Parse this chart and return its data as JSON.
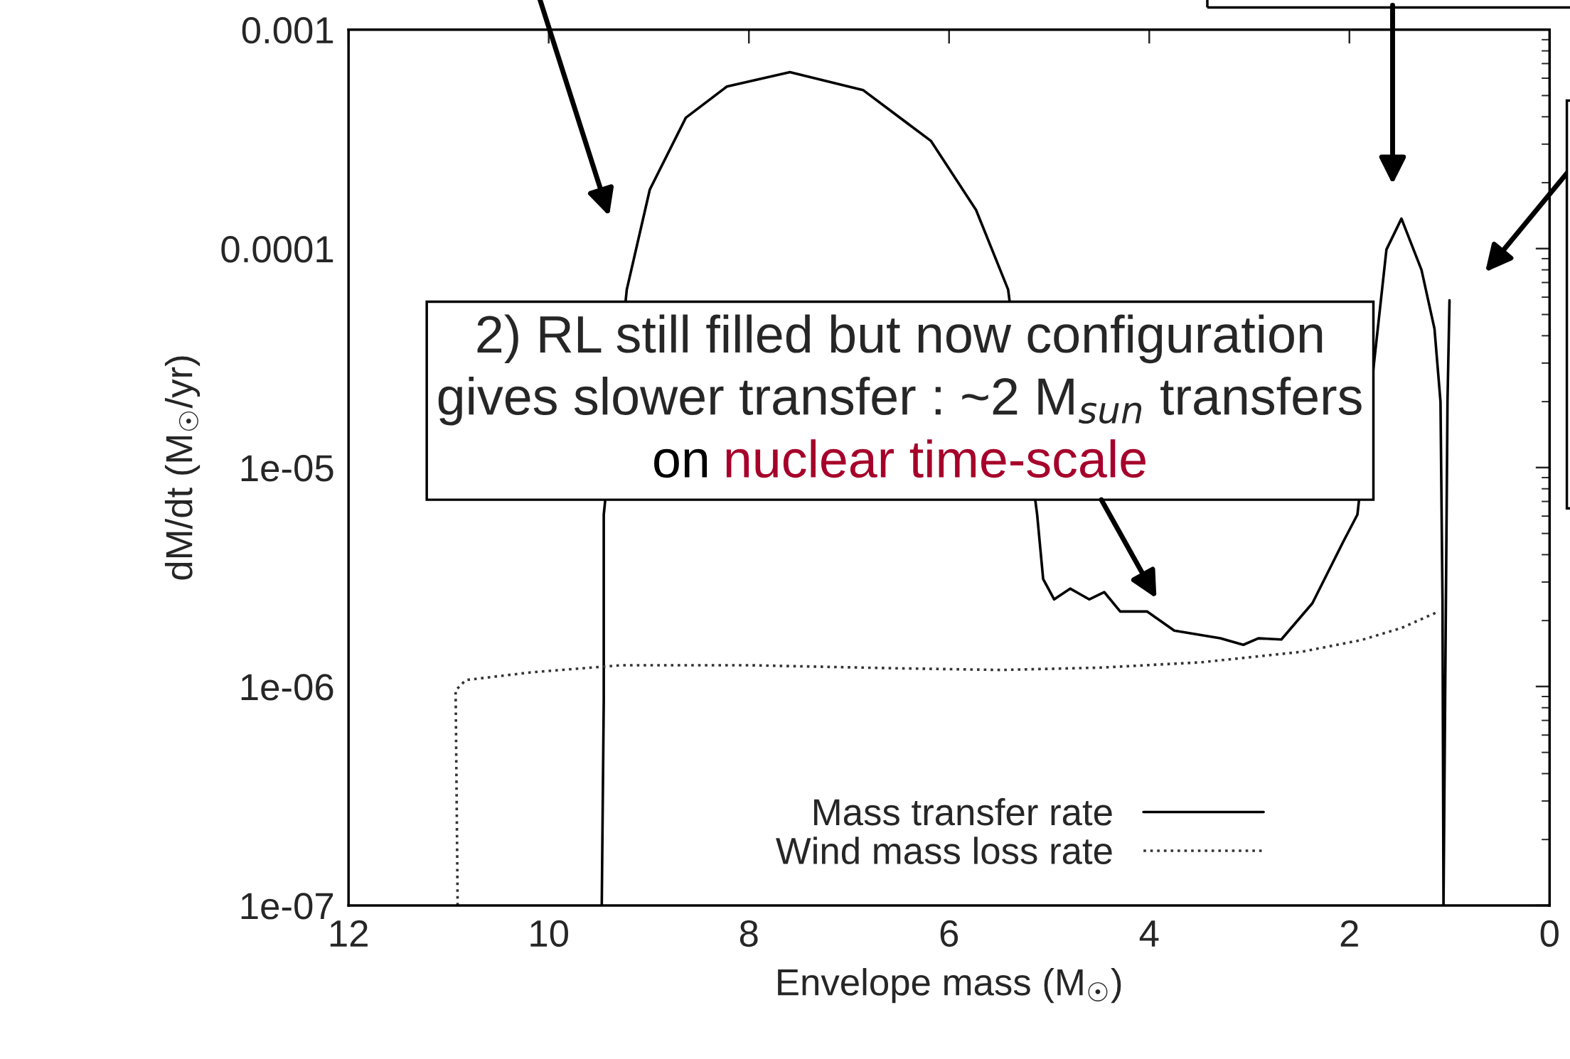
{
  "chart_data": {
    "type": "line",
    "xlabel": "Envelope mass (M$_{☉}$)",
    "ylabel": "dM/dt (M$_{☉}$/yr)",
    "log": "y",
    "xlim": [
      12,
      0
    ],
    "xticks": [
      12,
      10,
      8,
      6,
      4,
      2,
      0
    ],
    "ylim": [
      1e-07,
      0.001
    ],
    "yticks": [
      {
        "value": 1e-07,
        "label": "1e-07"
      },
      {
        "value": 1e-06,
        "label": "1e-06"
      },
      {
        "value": 1e-05,
        "label": "1e-05"
      },
      {
        "value": 0.0001,
        "label": "0.0001"
      },
      {
        "value": 0.001,
        "label": "0.001"
      }
    ],
    "grid": false,
    "legend": "bottom right",
    "series": [
      {
        "name": "Mass transfer rate",
        "color": "#000000",
        "line_style": "solid",
        "x": [
          9.47,
          9.45,
          9.45,
          9.41,
          9.22,
          8.99,
          8.63,
          8.22,
          7.59,
          6.86,
          6.18,
          5.73,
          5.41,
          5.28,
          5.12,
          5.06,
          4.95,
          4.79,
          4.6,
          4.45,
          4.29,
          4.02,
          3.75,
          3.29,
          3.06,
          2.91,
          2.68,
          2.37,
          2.06,
          1.92,
          1.78,
          1.63,
          1.48,
          1.28,
          1.15,
          1.09,
          1.07,
          1.06,
          1.02,
          1.0
        ],
        "values": [
          1e-07,
          8.7e-07,
          6.1e-06,
          null,
          6.5e-05,
          0.000186,
          0.000396,
          0.00055,
          0.00064,
          0.00053,
          0.00031,
          0.00015,
          6.5e-05,
          null,
          6.1e-06,
          3.1e-06,
          2.5e-06,
          2.8e-06,
          2.5e-06,
          2.7e-06,
          2.2e-06,
          2.2e-06,
          1.8e-06,
          1.66e-06,
          1.55e-06,
          1.66e-06,
          1.64e-06,
          2.4e-06,
          4.6e-06,
          6.1e-06,
          null,
          9.9e-05,
          0.000137,
          8e-05,
          4.3e-05,
          2e-05,
          2.5e-06,
          1e-07,
          2e-05,
          5.8e-05
        ]
      },
      {
        "name": "Wind mass loss rate",
        "color": "#333333",
        "line_style": "dotted",
        "x": [
          10.91,
          10.93,
          10.83,
          10.18,
          9.28,
          7.98,
          6.48,
          5.48,
          4.48,
          3.48,
          2.48,
          1.88,
          1.48,
          1.13
        ],
        "values": [
          1e-07,
          9.6e-07,
          1.07e-06,
          1.16e-06,
          1.25e-06,
          1.25e-06,
          1.21e-06,
          1.19e-06,
          1.22e-06,
          1.29e-06,
          1.44e-06,
          1.63e-06,
          1.85e-06,
          2.18e-06
        ]
      }
    ],
    "annotations": [
      "2) RL still filled but now configuration\ngives slower transfer : ~2 M$_{sun}$ transfers",
      "on",
      "nuclear time-scale"
    ]
  }
}
